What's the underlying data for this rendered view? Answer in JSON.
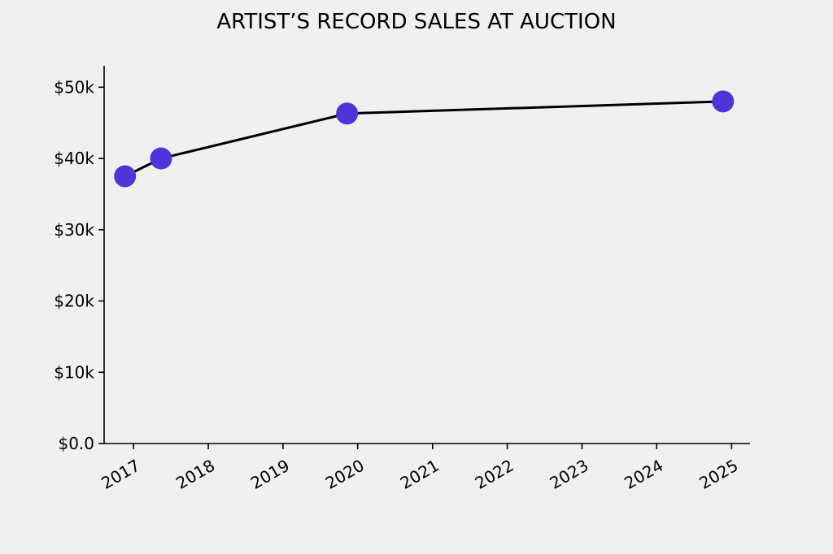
{
  "chart_data": {
    "type": "line",
    "title": "ARTIST’S RECORD SALES AT AUCTION",
    "xlabel": "",
    "ylabel": "",
    "x_ticks": [
      "2017",
      "2018",
      "2019",
      "2020",
      "2021",
      "2022",
      "2023",
      "2024",
      "2025"
    ],
    "y_ticks": [
      "$0.0",
      "$10k",
      "$20k",
      "$30k",
      "$40k",
      "$50k"
    ],
    "y_tick_values": [
      0,
      10000,
      20000,
      30000,
      40000,
      50000
    ],
    "xlim": [
      "2016-08-10",
      "2025-04-01"
    ],
    "ylim": [
      0,
      53000
    ],
    "grid": false,
    "series": [
      {
        "x": [
          "2016-11-20",
          "2017-05-15",
          "2019-11-10",
          "2024-11-20"
        ],
        "y": [
          37500,
          40000,
          46300,
          48000
        ]
      }
    ],
    "colors": {
      "line": "#000000",
      "marker": "#4b35db",
      "background": "#f0f0f0"
    }
  }
}
